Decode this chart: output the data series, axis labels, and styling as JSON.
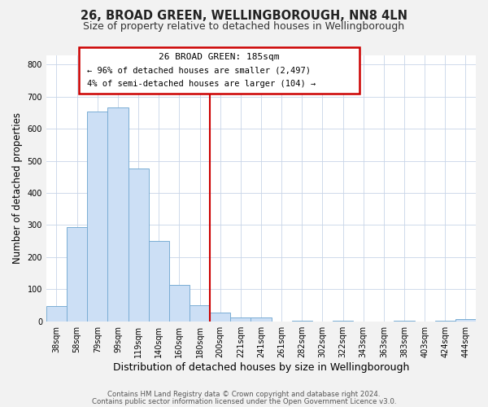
{
  "title": "26, BROAD GREEN, WELLINGBOROUGH, NN8 4LN",
  "subtitle": "Size of property relative to detached houses in Wellingborough",
  "xlabel": "Distribution of detached houses by size in Wellingborough",
  "ylabel": "Number of detached properties",
  "bar_labels": [
    "38sqm",
    "58sqm",
    "79sqm",
    "99sqm",
    "119sqm",
    "140sqm",
    "160sqm",
    "180sqm",
    "200sqm",
    "221sqm",
    "241sqm",
    "261sqm",
    "282sqm",
    "302sqm",
    "322sqm",
    "343sqm",
    "363sqm",
    "383sqm",
    "403sqm",
    "424sqm",
    "444sqm"
  ],
  "bar_heights": [
    47,
    293,
    653,
    667,
    477,
    250,
    113,
    50,
    27,
    13,
    13,
    0,
    3,
    0,
    3,
    0,
    0,
    3,
    0,
    3,
    7
  ],
  "bar_color": "#ccdff5",
  "bar_edge_color": "#7aadd4",
  "vline_pos": 7.5,
  "vline_color": "#cc0000",
  "annotation_title": "26 BROAD GREEN: 185sqm",
  "annotation_line1": "← 96% of detached houses are smaller (2,497)",
  "annotation_line2": "4% of semi-detached houses are larger (104) →",
  "annotation_box_edgecolor": "#cc0000",
  "ylim": [
    0,
    830
  ],
  "yticks": [
    0,
    100,
    200,
    300,
    400,
    500,
    600,
    700,
    800
  ],
  "footer1": "Contains HM Land Registry data © Crown copyright and database right 2024.",
  "footer2": "Contains public sector information licensed under the Open Government Licence v3.0.",
  "bg_color": "#f2f2f2",
  "plot_bg_color": "#ffffff",
  "grid_color": "#c8d4e8",
  "title_fontsize": 10.5,
  "subtitle_fontsize": 9,
  "ylabel_fontsize": 8.5,
  "xlabel_fontsize": 9,
  "tick_fontsize": 7,
  "annotation_fontsize": 8,
  "footer_fontsize": 6.2
}
